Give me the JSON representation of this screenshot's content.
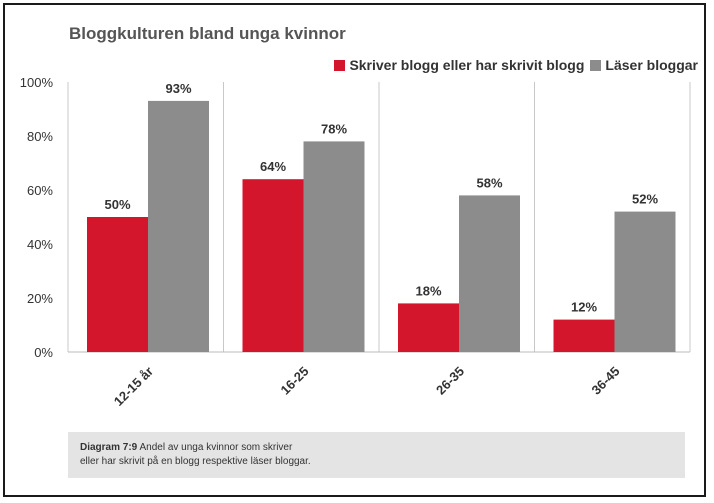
{
  "chart_data": {
    "type": "bar",
    "title": "Bloggkulturen bland unga kvinnor",
    "categories": [
      "12-15 år",
      "16-25",
      "26-35",
      "36-45"
    ],
    "series": [
      {
        "name": "Skriver blogg eller har skrivit blogg",
        "color": "#d4162c",
        "values": [
          50,
          64,
          18,
          12
        ],
        "labels": [
          "50%",
          "64%",
          "18%",
          "12%"
        ]
      },
      {
        "name": "Läser bloggar",
        "color": "#8c8c8c",
        "values": [
          93,
          78,
          58,
          52
        ],
        "labels": [
          "93%",
          "78%",
          "58%",
          "52%"
        ]
      }
    ],
    "yticks": [
      "0%",
      "20%",
      "40%",
      "60%",
      "80%",
      "100%"
    ],
    "ylim": [
      0,
      100
    ],
    "legend": "top-right",
    "grid": "vertical separators"
  },
  "caption": {
    "label": "Diagram 7:9",
    "text": " Andel av unga kvinnor som skriver",
    "line2": "eller har skrivit på en blogg respektive läser bloggar."
  }
}
